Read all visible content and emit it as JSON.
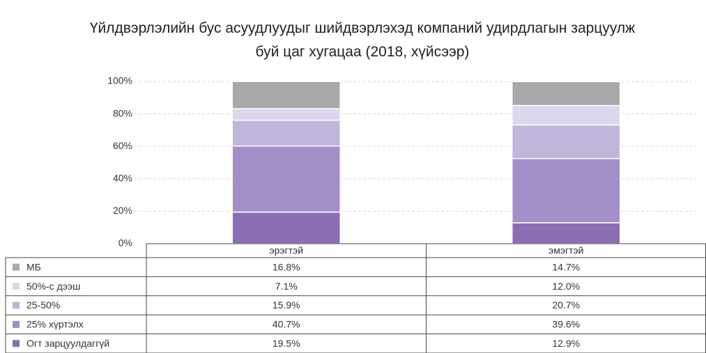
{
  "chart_data": {
    "type": "stacked_bar",
    "title": "Үйлдвэрлэлийн бус асуудлуудыг шийдвэрлэхэд компаний удирдлагын зарцуулж буй цаг хугацаа (2018, хүйсээр)",
    "categories": [
      "эрэгтэй",
      "эмэгтэй"
    ],
    "series": [
      {
        "name": "МБ",
        "color": "#a9a9a9",
        "values": [
          16.8,
          14.7
        ],
        "value_labels": [
          "16.8%",
          "14.7%"
        ]
      },
      {
        "name": "50%-с дээш",
        "color": "#dcd7ec",
        "values": [
          7.1,
          12.0
        ],
        "value_labels": [
          "7.1%",
          "12.0%"
        ]
      },
      {
        "name": "25-50%",
        "color": "#c0b5da",
        "values": [
          15.9,
          20.7
        ],
        "value_labels": [
          "15.9%",
          "20.7%"
        ]
      },
      {
        "name": "25% хүртэлх",
        "color": "#a28fc7",
        "values": [
          40.7,
          39.6
        ],
        "value_labels": [
          "40.7%",
          "39.6%"
        ]
      },
      {
        "name": "Огт зарцуулдаггүй",
        "color": "#8a6db2",
        "values": [
          19.5,
          12.9
        ],
        "value_labels": [
          "19.5%",
          "12.9%"
        ]
      }
    ],
    "ylim": [
      0,
      100
    ],
    "yticks": [
      {
        "value": 0,
        "label": "0%"
      },
      {
        "value": 20,
        "label": "20%"
      },
      {
        "value": 40,
        "label": "40%"
      },
      {
        "value": 60,
        "label": "60%"
      },
      {
        "value": 80,
        "label": "80%"
      },
      {
        "value": 100,
        "label": "100%"
      }
    ],
    "grid": true
  }
}
